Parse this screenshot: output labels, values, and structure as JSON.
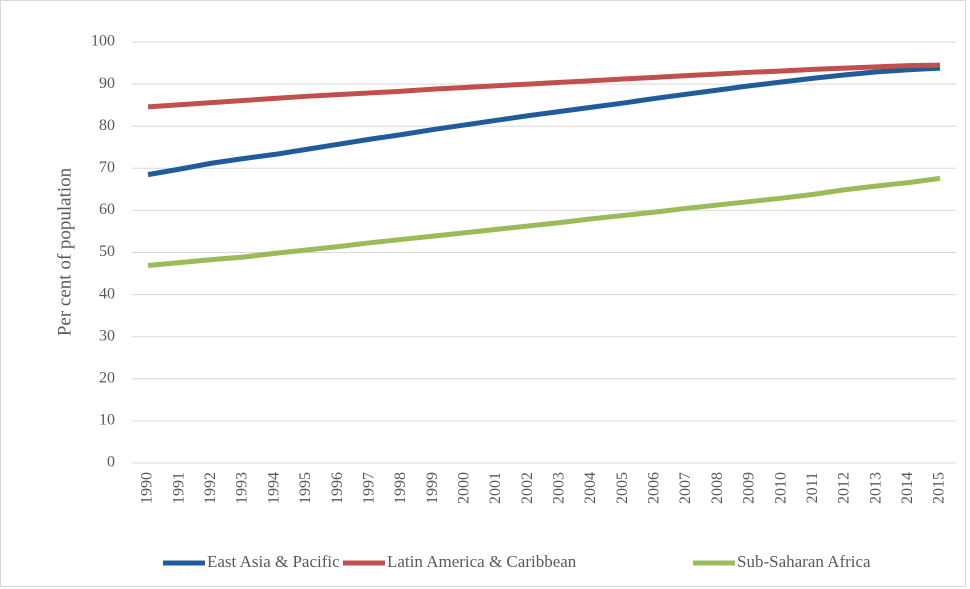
{
  "chart_data": {
    "type": "line",
    "y_label": "Per cent of population",
    "categories": [
      "1990",
      "1991",
      "1992",
      "1993",
      "1994",
      "1995",
      "1996",
      "1997",
      "1998",
      "1999",
      "2000",
      "2001",
      "2002",
      "2003",
      "2004",
      "2005",
      "2006",
      "2007",
      "2008",
      "2009",
      "2010",
      "2011",
      "2012",
      "2013",
      "2014",
      "2015"
    ],
    "series": [
      {
        "name": "East Asia & Pacific",
        "color": "#1f5c99",
        "values": [
          68.5,
          69.8,
          71.2,
          72.3,
          73.3,
          74.5,
          75.7,
          76.9,
          78.0,
          79.2,
          80.3,
          81.4,
          82.5,
          83.5,
          84.5,
          85.5,
          86.6,
          87.6,
          88.6,
          89.6,
          90.5,
          91.4,
          92.2,
          92.9,
          93.4,
          93.8
        ]
      },
      {
        "name": "Latin America & Caribbean",
        "color": "#c0504d",
        "values": [
          84.6,
          85.1,
          85.6,
          86.1,
          86.6,
          87.1,
          87.5,
          87.9,
          88.3,
          88.8,
          89.2,
          89.6,
          90.0,
          90.4,
          90.8,
          91.2,
          91.6,
          92.0,
          92.4,
          92.8,
          93.1,
          93.5,
          93.8,
          94.1,
          94.4,
          94.5
        ]
      },
      {
        "name": "Sub-Saharan Africa",
        "color": "#9bbb59",
        "values": [
          46.9,
          47.6,
          48.3,
          48.9,
          49.8,
          50.6,
          51.4,
          52.3,
          53.1,
          53.9,
          54.7,
          55.5,
          56.3,
          57.1,
          58.0,
          58.8,
          59.6,
          60.5,
          61.3,
          62.1,
          62.9,
          63.8,
          64.9,
          65.8,
          66.6,
          67.6
        ]
      }
    ],
    "ylim": [
      0,
      100
    ],
    "yticks": [
      0,
      10,
      20,
      30,
      40,
      50,
      60,
      70,
      80,
      90,
      100
    ],
    "grid": true,
    "legend": "bottom"
  }
}
